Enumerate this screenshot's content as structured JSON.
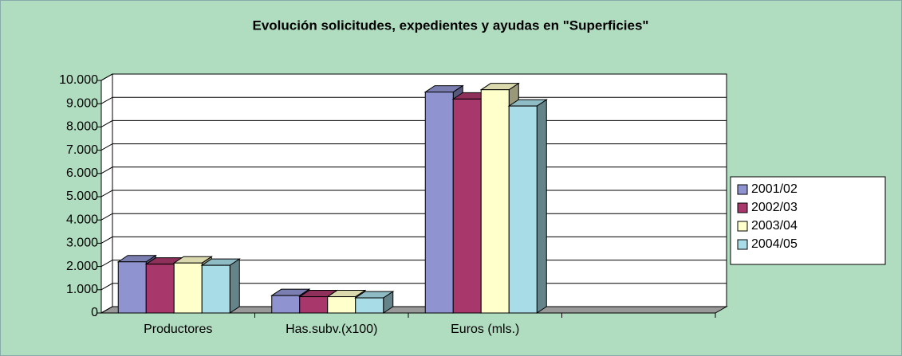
{
  "chart_data": {
    "type": "bar3d",
    "title": "Evolución solicitudes, expedientes y  ayudas en \"Superficies\"",
    "categories": [
      "Productores",
      "Has.subv.(x100)",
      "Euros (mls.)",
      null
    ],
    "series": [
      {
        "name": "2001/02",
        "color": "#8f94d0",
        "values": [
          2200,
          750,
          9500,
          null
        ]
      },
      {
        "name": "2002/03",
        "color": "#a8386b",
        "values": [
          2100,
          700,
          9200,
          null
        ]
      },
      {
        "name": "2003/04",
        "color": "#ffffcc",
        "values": [
          2150,
          700,
          9600,
          null
        ]
      },
      {
        "name": "2004/05",
        "color": "#a8dce6",
        "values": [
          2050,
          650,
          8900,
          null
        ]
      }
    ],
    "ylim": [
      0,
      10000
    ],
    "yticks": [
      0,
      {
        "value": 1000,
        "label": "1.000"
      },
      {
        "value": 2000,
        "label": "2.000"
      },
      {
        "value": 3000,
        "label": "3.000"
      },
      {
        "value": 4000,
        "label": "4.000"
      },
      {
        "value": 5000,
        "label": "5.000"
      },
      {
        "value": 6000,
        "label": "6.000"
      },
      {
        "value": 7000,
        "label": "7.000"
      },
      {
        "value": 8000,
        "label": "8.000"
      },
      {
        "value": 9000,
        "label": "9.000"
      },
      {
        "value": 10000,
        "label": "10.000"
      }
    ],
    "grid": true,
    "legend": "right"
  }
}
